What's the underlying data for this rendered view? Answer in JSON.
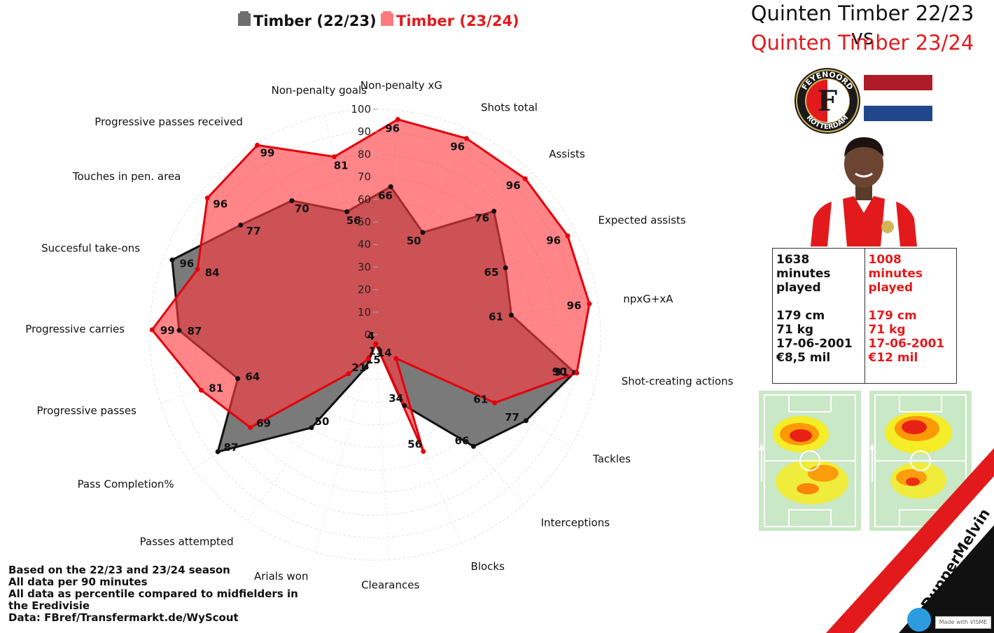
{
  "header": {
    "title_line1": "Quinten Timber 22/23 vs",
    "title_line2": "Quinten Timber 23/24"
  },
  "legend": [
    {
      "label": "Timber (22/23)",
      "color": "#6e6e6e"
    },
    {
      "label": "Timber (23/24)",
      "color": "#ff5a5f"
    }
  ],
  "profile": {
    "club_logo": "feyenoord-crest-icon",
    "club_text_top": "FEYENOORD",
    "club_text_bottom": "ROTTERDAM",
    "flag_colors": [
      "#ae1c28",
      "#ffffff",
      "#21468b"
    ],
    "season1": {
      "minutes": "1638 minutes played",
      "height": "179 cm",
      "weight": "71 kg",
      "dob": "17-06-2001",
      "value": "€8,5 mil"
    },
    "season2": {
      "minutes": "1008 minutes played",
      "height": "179 cm",
      "weight": "71 kg",
      "dob": "17-06-2001",
      "value": "€12 mil"
    }
  },
  "footnote": {
    "line1": "Based on the 22/23 and 23/24 season",
    "line2": "All data per 90 minutes",
    "line3": "All data as percentile compared to midfielders in the Eredivisie",
    "line4": "Data: FBref/Transfermarkt.de/WyScout"
  },
  "branding": {
    "handle": "@DupperMelvin",
    "made_with": "Made with VISME"
  },
  "chart_data": {
    "type": "radar",
    "scale": [
      0,
      100
    ],
    "scale_ticks": [
      0,
      10,
      20,
      30,
      40,
      50,
      60,
      70,
      80,
      90,
      100
    ],
    "categories": [
      "Non-penalty xG",
      "Shots total",
      "Assists",
      "Expected assists",
      "npxG+xA",
      "Shot-creating actions",
      "Tackles",
      "Interceptions",
      "Blocks",
      "Clearances",
      "Arials won",
      "Passes attempted",
      "Pass Completion%",
      "Progressive passes",
      "Progressive carries",
      "Succesful take-ons",
      "Touches in pen. area",
      "Progressive passes received",
      "Non-penalty goals"
    ],
    "series": [
      {
        "name": "Timber (22/23)",
        "color": "#6e6e6e",
        "values": [
          66,
          50,
          76,
          65,
          61,
          90,
          77,
          66,
          34,
          4,
          15,
          50,
          87,
          64,
          87,
          96,
          77,
          70,
          56
        ]
      },
      {
        "name": "Timber (23/24)",
        "color": "#ff5a5f",
        "values": [
          96,
          96,
          96,
          96,
          96,
          91,
          61,
          14,
          56,
          4,
          11,
          21,
          69,
          81,
          99,
          84,
          96,
          99,
          81
        ]
      }
    ]
  }
}
